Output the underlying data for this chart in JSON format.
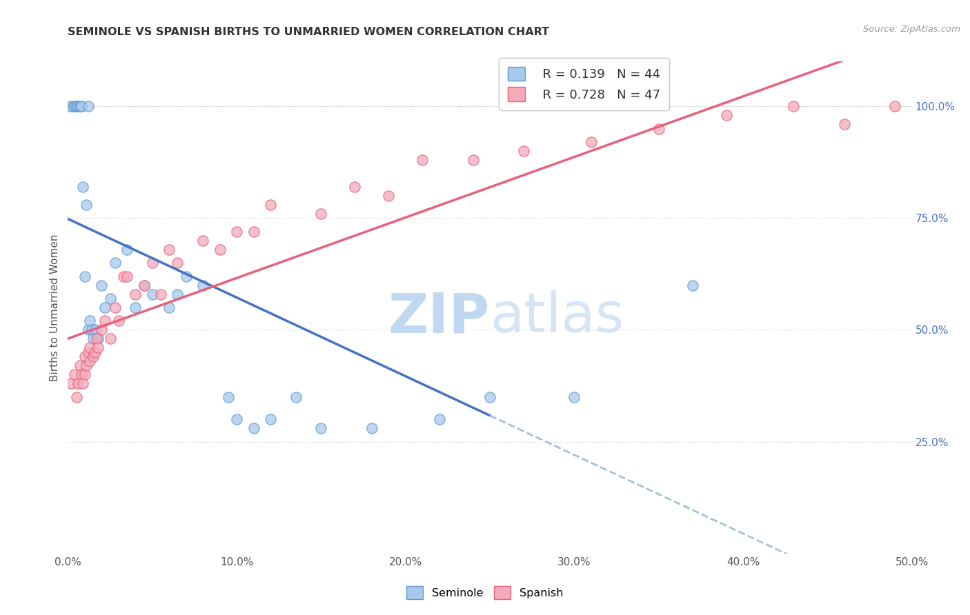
{
  "title": "SEMINOLE VS SPANISH BIRTHS TO UNMARRIED WOMEN CORRELATION CHART",
  "source": "Source: ZipAtlas.com",
  "ylabel": "Births to Unmarried Women",
  "x_ticks_labels": [
    "0.0%",
    "10.0%",
    "20.0%",
    "30.0%",
    "40.0%",
    "50.0%"
  ],
  "x_tick_vals": [
    0.0,
    0.1,
    0.2,
    0.3,
    0.4,
    0.5
  ],
  "y_ticks_right_labels": [
    "100.0%",
    "75.0%",
    "50.0%",
    "25.0%"
  ],
  "y_tick_vals_right": [
    1.0,
    0.75,
    0.5,
    0.25
  ],
  "xlim": [
    0.0,
    0.5
  ],
  "ylim": [
    0.0,
    1.1
  ],
  "seminole_color": "#A8C8EC",
  "spanish_color": "#F4AABB",
  "seminole_edge": "#5B9BD5",
  "spanish_edge": "#E8607A",
  "trendline_seminole_color": "#4472C4",
  "trendline_spanish_color": "#E8607A",
  "trendline_dashed_color": "#A0C0E0",
  "watermark": "ZIPatlas",
  "watermark_color": "#D0E4F5",
  "seminole_x": [
    0.001,
    0.003,
    0.004,
    0.004,
    0.005,
    0.005,
    0.006,
    0.007,
    0.007,
    0.008,
    0.008,
    0.009,
    0.01,
    0.011,
    0.012,
    0.012,
    0.013,
    0.014,
    0.015,
    0.016,
    0.018,
    0.02,
    0.022,
    0.025,
    0.028,
    0.035,
    0.04,
    0.045,
    0.05,
    0.06,
    0.065,
    0.07,
    0.08,
    0.095,
    0.1,
    0.11,
    0.12,
    0.135,
    0.15,
    0.18,
    0.22,
    0.25,
    0.3,
    0.37
  ],
  "seminole_y": [
    1.0,
    1.0,
    1.0,
    1.0,
    1.0,
    1.0,
    1.0,
    1.0,
    1.0,
    1.0,
    1.0,
    0.82,
    0.62,
    0.78,
    1.0,
    0.5,
    0.52,
    0.5,
    0.48,
    0.5,
    0.48,
    0.6,
    0.55,
    0.57,
    0.65,
    0.68,
    0.55,
    0.6,
    0.58,
    0.55,
    0.58,
    0.62,
    0.6,
    0.35,
    0.3,
    0.28,
    0.3,
    0.35,
    0.28,
    0.28,
    0.3,
    0.35,
    0.35,
    0.6
  ],
  "spanish_x": [
    0.002,
    0.004,
    0.005,
    0.006,
    0.007,
    0.008,
    0.009,
    0.01,
    0.01,
    0.011,
    0.012,
    0.013,
    0.013,
    0.015,
    0.016,
    0.017,
    0.018,
    0.02,
    0.022,
    0.025,
    0.028,
    0.03,
    0.033,
    0.035,
    0.04,
    0.045,
    0.05,
    0.055,
    0.06,
    0.065,
    0.08,
    0.09,
    0.1,
    0.11,
    0.12,
    0.15,
    0.17,
    0.19,
    0.21,
    0.24,
    0.27,
    0.31,
    0.35,
    0.39,
    0.43,
    0.46,
    0.49
  ],
  "spanish_y": [
    0.38,
    0.4,
    0.35,
    0.38,
    0.42,
    0.4,
    0.38,
    0.4,
    0.44,
    0.42,
    0.45,
    0.43,
    0.46,
    0.44,
    0.45,
    0.48,
    0.46,
    0.5,
    0.52,
    0.48,
    0.55,
    0.52,
    0.62,
    0.62,
    0.58,
    0.6,
    0.65,
    0.58,
    0.68,
    0.65,
    0.7,
    0.68,
    0.72,
    0.72,
    0.78,
    0.76,
    0.82,
    0.8,
    0.88,
    0.88,
    0.9,
    0.92,
    0.95,
    0.98,
    1.0,
    0.96,
    1.0
  ]
}
